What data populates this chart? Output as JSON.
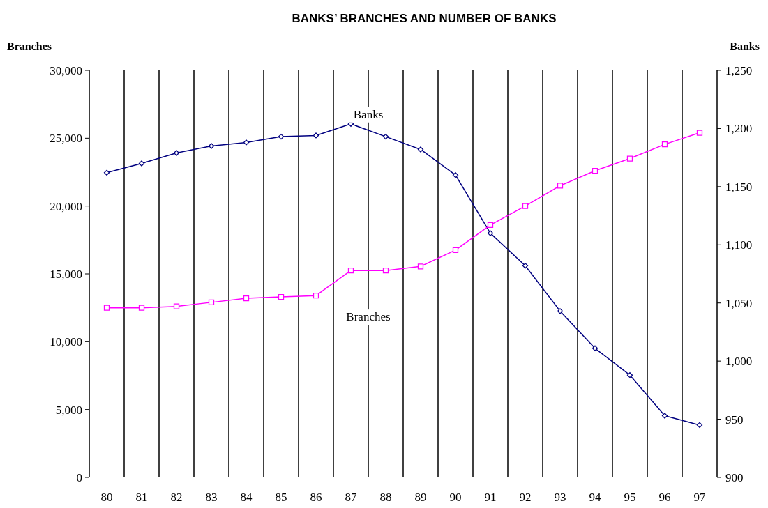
{
  "chart_data": {
    "type": "line",
    "title": "BANKS’ BRANCHES AND NUMBER OF BANKS",
    "ylabel": "Branches",
    "y2label": "Banks",
    "categories": [
      "80",
      "81",
      "82",
      "83",
      "84",
      "85",
      "86",
      "87",
      "88",
      "89",
      "90",
      "91",
      "92",
      "93",
      "94",
      "95",
      "96",
      "97"
    ],
    "series": [
      {
        "name": "Banks",
        "color": "#000080",
        "axis": "y2",
        "marker": "diamond",
        "values": [
          1162,
          1170,
          1179,
          1185,
          1188,
          1193,
          1194,
          1204,
          1193,
          1182,
          1160,
          1110,
          1082,
          1043,
          1011,
          988,
          953,
          945
        ]
      },
      {
        "name": "Branches",
        "color": "#ff00ff",
        "marker": "square",
        "values": [
          12500,
          12500,
          12600,
          12900,
          13200,
          13300,
          13400,
          15250,
          15250,
          15550,
          16750,
          18600,
          20000,
          21500,
          22600,
          23500,
          24550,
          25400
        ]
      }
    ],
    "ylim": [
      0,
      30000
    ],
    "yticks": [
      0,
      {
        "value": 5000,
        "label": "5,000"
      },
      {
        "value": 10000,
        "label": "10,000"
      },
      {
        "value": 15000,
        "label": "15,000"
      },
      {
        "value": 20000,
        "label": "20,000"
      },
      {
        "value": 25000,
        "label": "25,000"
      },
      {
        "value": 30000,
        "label": "30,000"
      }
    ],
    "y2lim": [
      900,
      1250
    ],
    "y2ticks": [
      900,
      950,
      {
        "value": 1000,
        "label": "1,000"
      },
      {
        "value": 1050,
        "label": "1,050"
      },
      {
        "value": 1100,
        "label": "1,100"
      },
      {
        "value": 1150,
        "label": "1,150"
      },
      {
        "value": 1200,
        "label": "1,200"
      },
      {
        "value": 1250,
        "label": "1,250"
      }
    ],
    "grid": "x",
    "line_style": "solid"
  }
}
